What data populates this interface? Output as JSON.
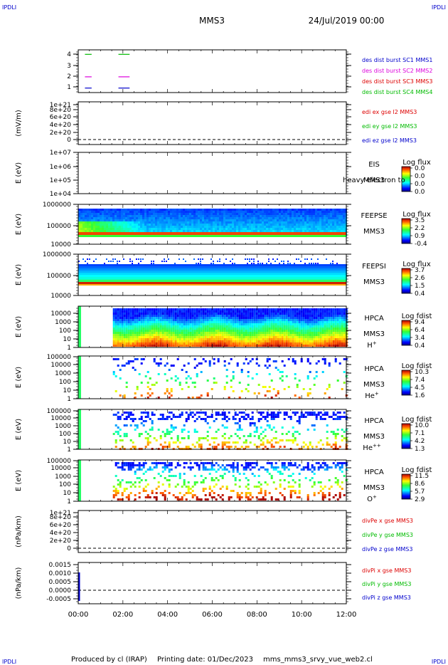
{
  "corner_label": "IPDLI",
  "header": {
    "mission": "MMS3",
    "date": "24/Jul/2019 00:00"
  },
  "footer": {
    "produced_by": "Produced by cl (IRAP)",
    "printing_date": "Printing date: 01/Dec/2023",
    "filename": "mms_mms3_srvy_vue_web2.cl"
  },
  "time_axis": {
    "ticks": [
      "00:00",
      "02:00",
      "04:00",
      "06:00",
      "08:00",
      "10:00",
      "12:00"
    ],
    "range_hours": [
      0,
      12
    ]
  },
  "colors": {
    "red": "#dd0000",
    "green": "#00bb00",
    "blue": "#0000cc",
    "magenta": "#dd00dd"
  },
  "chart_data": [
    {
      "type": "line",
      "title": "des dist burst",
      "ylabel": "",
      "yticks": [
        "1",
        "2",
        "3",
        "4"
      ],
      "ylim": [
        0.6,
        4.4
      ],
      "legend": [
        {
          "label": "des dist burst SC1 MMS1",
          "color": "#0000cc"
        },
        {
          "label": "des dist burst SC2 MMS2",
          "color": "#dd00dd"
        },
        {
          "label": "des dist burst SC3 MMS3",
          "color": "#dd0000"
        },
        {
          "label": "des dist burst SC4 MMS4",
          "color": "#00bb00"
        }
      ],
      "series": [
        {
          "name": "des dist burst SC1 MMS1",
          "color": "#0000cc",
          "level": 1,
          "segments": [
            [
              0.3,
              0.6
            ],
            [
              1.8,
              2.3
            ]
          ]
        },
        {
          "name": "des dist burst SC2 MMS2",
          "color": "#dd00dd",
          "level": 2,
          "segments": [
            [
              0.3,
              0.6
            ],
            [
              1.8,
              2.3
            ]
          ]
        },
        {
          "name": "des dist burst SC4 MMS4",
          "color": "#00bb00",
          "level": 4,
          "segments": [
            [
              0.3,
              0.6
            ],
            [
              1.8,
              2.3
            ]
          ]
        }
      ]
    },
    {
      "type": "line",
      "ylabel": "(mV/m)",
      "yticks": [
        "0",
        "2e+20",
        "4e+20",
        "6e+20",
        "8e+20",
        "1e+21"
      ],
      "legend": [
        {
          "label": "edi ex gse l2 MMS3",
          "color": "#dd0000"
        },
        {
          "label": "edi ey gse l2 MMS3",
          "color": "#00bb00"
        },
        {
          "label": "edi ez gse l2 MMS3",
          "color": "#0000cc"
        }
      ]
    },
    {
      "type": "heatmap",
      "ylabel": "E (eV)",
      "yticks": [
        "1e+04",
        "1e+05",
        "1e+06",
        "1e+07"
      ],
      "labels": [
        "EIS",
        "MMS3"
      ],
      "extra_text": "heavy electron to",
      "colorbar": {
        "title": "Log flux",
        "values": [
          "0.0",
          "0.0",
          "0.0",
          "0.0"
        ]
      }
    },
    {
      "type": "heatmap",
      "ylabel": "E (eV)",
      "yticks": [
        "10000",
        "100000",
        "1000000"
      ],
      "labels": [
        "FEEPSE",
        "MMS3"
      ],
      "colorbar": {
        "title": "Log flux",
        "values": [
          "3.5",
          "2.2",
          "0.9",
          "-0.4"
        ]
      }
    },
    {
      "type": "heatmap",
      "ylabel": "E (eV)",
      "yticks": [
        "10000",
        "100000",
        "1000000"
      ],
      "labels": [
        "FEEPSI",
        "MMS3"
      ],
      "colorbar": {
        "title": "Log flux",
        "values": [
          "3.7",
          "2.6",
          "1.5",
          "0.4"
        ]
      }
    },
    {
      "type": "heatmap",
      "ylabel": "E (eV)",
      "yticks": [
        "1",
        "10",
        "100",
        "1000",
        "10000"
      ],
      "labels": [
        "HPCA",
        "MMS3"
      ],
      "species": {
        "base": "H",
        "sup": "+"
      },
      "colorbar": {
        "title": "Log fdist",
        "values": [
          "9.4",
          "6.4",
          "3.4",
          "0.4"
        ]
      }
    },
    {
      "type": "heatmap",
      "ylabel": "E (eV)",
      "yticks": [
        "1",
        "10",
        "100",
        "1000",
        "10000",
        "100000"
      ],
      "labels": [
        "HPCA",
        "MMS3"
      ],
      "species": {
        "base": "He",
        "sup": "+"
      },
      "colorbar": {
        "title": "Log fdist",
        "values": [
          "10.3",
          "7.4",
          "4.5",
          "1.6"
        ]
      }
    },
    {
      "type": "heatmap",
      "ylabel": "E (eV)",
      "yticks": [
        "1",
        "10",
        "100",
        "1000",
        "10000",
        "100000"
      ],
      "labels": [
        "HPCA",
        "MMS3"
      ],
      "species": {
        "base": "He",
        "sup": "++"
      },
      "colorbar": {
        "title": "Log fdist",
        "values": [
          "10.0",
          "7.1",
          "4.2",
          "1.3"
        ]
      }
    },
    {
      "type": "heatmap",
      "ylabel": "E (eV)",
      "yticks": [
        "1",
        "10",
        "100",
        "1000",
        "10000",
        "100000"
      ],
      "labels": [
        "HPCA",
        "MMS3"
      ],
      "species": {
        "base": "O",
        "sup": "+"
      },
      "colorbar": {
        "title": "Log fdist",
        "values": [
          "11.5",
          "8.6",
          "5.7",
          "2.9"
        ]
      }
    },
    {
      "type": "line",
      "ylabel": "(nPa/km)",
      "yticks": [
        "0",
        "2e+20",
        "4e+20",
        "6e+20",
        "8e+20",
        "1e+21"
      ],
      "legend": [
        {
          "label": "divPe x gse MMS3",
          "color": "#dd0000"
        },
        {
          "label": "divPe y gse MMS3",
          "color": "#00bb00"
        },
        {
          "label": "divPe z gse MMS3",
          "color": "#0000cc"
        }
      ]
    },
    {
      "type": "line",
      "ylabel": "(nPa/km)",
      "yticks": [
        "-0.0005",
        "0.0000",
        "0.0005",
        "0.0010",
        "0.0015"
      ],
      "legend": [
        {
          "label": "divPi x gse MMS3",
          "color": "#dd0000"
        },
        {
          "label": "divPi y gse MMS3",
          "color": "#00bb00"
        },
        {
          "label": "divPi z gse MMS3",
          "color": "#0000cc"
        }
      ]
    }
  ]
}
